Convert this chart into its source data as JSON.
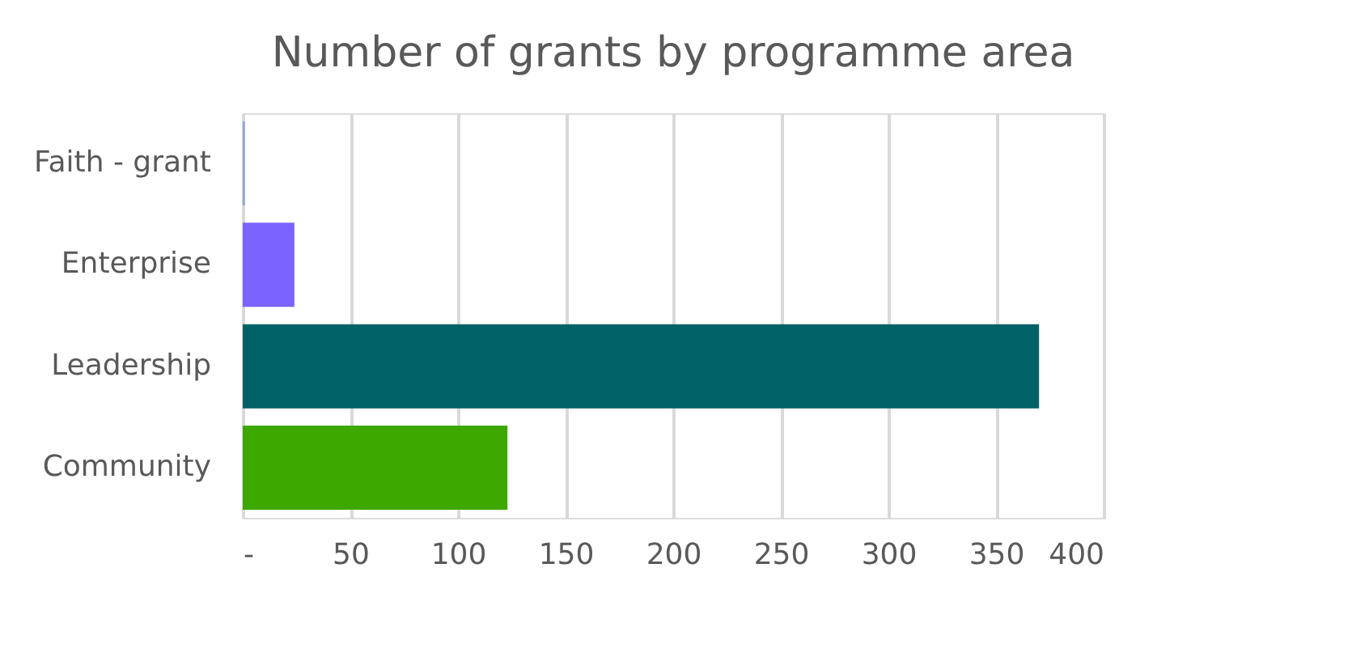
{
  "chart_data": {
    "type": "bar",
    "orientation": "horizontal",
    "title": "Number of grants by programme area",
    "categories": [
      "Faith - grant",
      "Enterprise",
      "Leadership",
      "Community"
    ],
    "values": [
      1,
      24,
      370,
      123
    ],
    "colors": [
      "#8fa8d8",
      "#7b63ff",
      "#006266",
      "#3ca800"
    ],
    "xlim": [
      0,
      400
    ],
    "xticks": [
      {
        "value": 0,
        "label": "-"
      },
      50,
      100,
      150,
      200,
      250,
      300,
      350,
      400
    ],
    "grid": "x"
  }
}
